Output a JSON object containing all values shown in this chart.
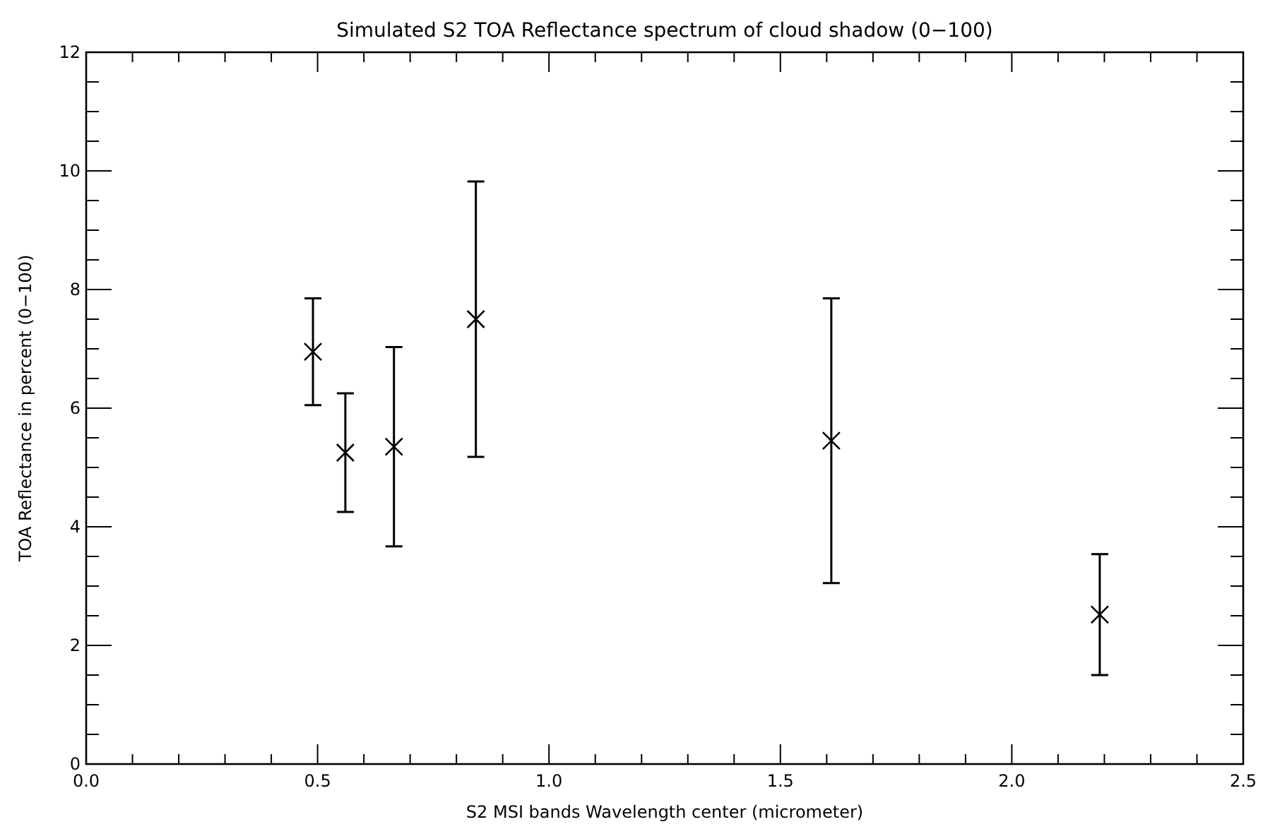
{
  "chart_data": {
    "type": "scatter",
    "title": "Simulated S2 TOA Reflectance spectrum of cloud shadow (0−100)",
    "xlabel": "S2 MSI bands Wavelength center (micrometer)",
    "ylabel": "TOA Reflectance in percent (0−100)",
    "x": [
      0.49,
      0.56,
      0.665,
      0.842,
      1.61,
      2.19
    ],
    "series": [
      {
        "color": "#000000",
        "values": [
          6.95,
          5.25,
          5.35,
          7.5,
          5.45,
          2.52
        ],
        "errors": [
          0.9,
          1.0,
          1.68,
          2.32,
          2.4,
          1.02
        ]
      }
    ],
    "marker": "cross",
    "grid": false,
    "xlim": [
      0,
      2.5
    ],
    "xticks": [
      {
        "value": 0,
        "label": "0.0"
      },
      {
        "value": 0.1,
        "label": null
      },
      {
        "value": 0.2,
        "label": null
      },
      {
        "value": 0.3,
        "label": null
      },
      {
        "value": 0.4,
        "label": null
      },
      {
        "value": 0.5,
        "label": "0.5"
      },
      {
        "value": 0.6,
        "label": null
      },
      {
        "value": 0.7,
        "label": null
      },
      {
        "value": 0.8,
        "label": null
      },
      {
        "value": 0.9,
        "label": null
      },
      {
        "value": 1,
        "label": "1.0"
      },
      {
        "value": 1.1,
        "label": null
      },
      {
        "value": 1.2,
        "label": null
      },
      {
        "value": 1.3,
        "label": null
      },
      {
        "value": 1.4,
        "label": null
      },
      {
        "value": 1.5,
        "label": "1.5"
      },
      {
        "value": 1.6,
        "label": null
      },
      {
        "value": 1.7,
        "label": null
      },
      {
        "value": 1.8,
        "label": null
      },
      {
        "value": 1.9,
        "label": null
      },
      {
        "value": 2,
        "label": "2.0"
      },
      {
        "value": 2.1,
        "label": null
      },
      {
        "value": 2.2,
        "label": null
      },
      {
        "value": 2.3,
        "label": null
      },
      {
        "value": 2.4,
        "label": null
      },
      {
        "value": 2.5,
        "label": "2.5"
      }
    ],
    "ylim": [
      0,
      12
    ],
    "yticks": [
      0,
      {
        "value": 0.5,
        "label": null
      },
      {
        "value": 1,
        "label": null
      },
      {
        "value": 1.5,
        "label": null
      },
      2,
      {
        "value": 2.5,
        "label": null
      },
      {
        "value": 3,
        "label": null
      },
      {
        "value": 3.5,
        "label": null
      },
      4,
      {
        "value": 4.5,
        "label": null
      },
      {
        "value": 5,
        "label": null
      },
      {
        "value": 5.5,
        "label": null
      },
      6,
      {
        "value": 6.5,
        "label": null
      },
      {
        "value": 7,
        "label": null
      },
      {
        "value": 7.5,
        "label": null
      },
      8,
      {
        "value": 8.5,
        "label": null
      },
      {
        "value": 9,
        "label": null
      },
      {
        "value": 9.5,
        "label": null
      },
      10,
      {
        "value": 10.5,
        "label": null
      },
      {
        "value": 11,
        "label": null
      },
      {
        "value": 11.5,
        "label": null
      },
      12
    ]
  }
}
